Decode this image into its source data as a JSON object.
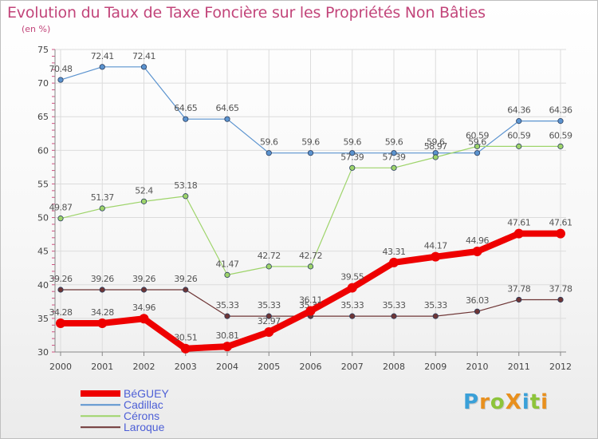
{
  "title": "Evolution du Taux de Taxe Foncière sur les Propriétés Non Bâties",
  "subtitle": "(en %)",
  "brand": {
    "text": "ProXiti",
    "letters": [
      {
        "ch": "P",
        "color": "#3aa0d8"
      },
      {
        "ch": "r",
        "color": "#e8901e"
      },
      {
        "ch": "o",
        "color": "#8dc43a"
      },
      {
        "ch": "X",
        "color": "#e8901e"
      },
      {
        "ch": "i",
        "color": "#3aa0d8"
      },
      {
        "ch": "t",
        "color": "#8dc43a"
      },
      {
        "ch": "i",
        "color": "#e8901e"
      }
    ]
  },
  "chart_data": {
    "type": "line",
    "title": "Evolution du Taux de Taxe Foncière sur les Propriétés Non Bâties",
    "ylabel": "(en %)",
    "xlabel": "",
    "x": [
      "2000",
      "2001",
      "2002",
      "2003",
      "2004",
      "2005",
      "2006",
      "2007",
      "2008",
      "2009",
      "2010",
      "2011",
      "2012"
    ],
    "ylim": [
      30,
      75
    ],
    "yticks": [
      30,
      35,
      40,
      45,
      50,
      55,
      60,
      65,
      70,
      75
    ],
    "grid": true,
    "legend_position": "bottom-left",
    "series": [
      {
        "name": "Cadillac",
        "color": "#5b93cf",
        "width": 1.2,
        "values": [
          70.48,
          72.41,
          72.41,
          64.65,
          64.65,
          59.6,
          59.6,
          59.6,
          59.6,
          59.6,
          59.6,
          64.36,
          64.36
        ],
        "labels": [
          "70.48",
          "72.41",
          "72.41",
          "64.65",
          "64.65",
          "59.6",
          "59.6",
          "59.6",
          "59.6",
          "59.6",
          "59.6",
          "64.36",
          "64.36"
        ]
      },
      {
        "name": "Cérons",
        "color": "#9ed46a",
        "width": 1.2,
        "values": [
          49.87,
          51.37,
          52.4,
          53.18,
          41.47,
          42.72,
          42.72,
          57.39,
          57.39,
          58.97,
          60.59,
          60.59,
          60.59
        ],
        "labels": [
          "49.87",
          "51.37",
          "52.4",
          "53.18",
          "41.47",
          "42.72",
          "42.72",
          "57.39",
          "57.39",
          "58.97",
          "60.59",
          "60.59",
          "60.59"
        ]
      },
      {
        "name": "Laroque",
        "color": "#6e3535",
        "width": 1.2,
        "values": [
          39.26,
          39.26,
          39.26,
          39.26,
          35.33,
          35.33,
          35.33,
          35.33,
          35.33,
          35.33,
          36.03,
          37.78,
          37.78
        ],
        "labels": [
          "39.26",
          "39.26",
          "39.26",
          "39.26",
          "35.33",
          "35.33",
          "35.33",
          "35.33",
          "35.33",
          "35.33",
          "36.03",
          "37.78",
          "37.78"
        ]
      },
      {
        "name": "BéGUEY",
        "color": "#ee0000",
        "width": 8,
        "values": [
          34.28,
          34.28,
          34.96,
          30.51,
          30.81,
          32.97,
          36.11,
          39.55,
          43.31,
          44.17,
          44.96,
          47.61,
          47.61
        ],
        "labels": [
          "34.28",
          "34.28",
          "34.96",
          "30.51",
          "30.81",
          "32.97",
          "36.11",
          "39.55",
          "43.31",
          "44.17",
          "44.96",
          "47.61",
          "47.61"
        ]
      }
    ],
    "legend": [
      {
        "name": "BéGUEY",
        "color": "#ee0000",
        "width": 8
      },
      {
        "name": "Cadillac",
        "color": "#5b93cf",
        "width": 1.5
      },
      {
        "name": "Cérons",
        "color": "#9ed46a",
        "width": 1.5
      },
      {
        "name": "Laroque",
        "color": "#6e3535",
        "width": 1.5
      }
    ]
  }
}
